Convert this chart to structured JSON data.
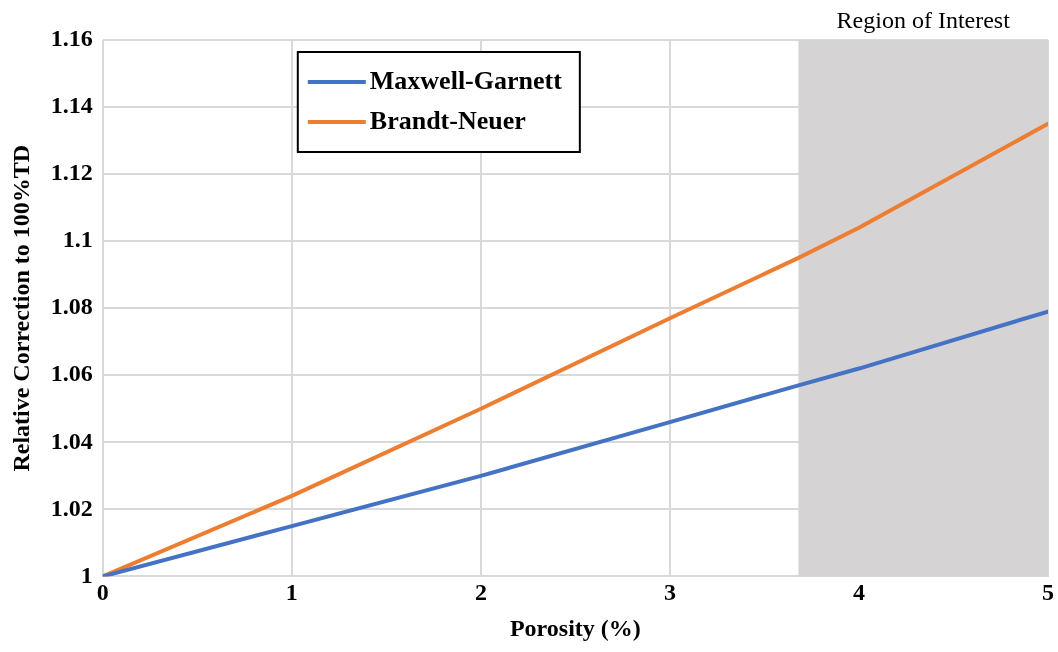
{
  "chart_data": {
    "type": "line",
    "xlabel": "Porosity (%)",
    "ylabel": "Relative Correction to 100%TD",
    "x": [
      0,
      1,
      2,
      3,
      3.68,
      4,
      5
    ],
    "series": [
      {
        "name": "Maxwell-Garnett",
        "color": "#4472c4",
        "values": [
          1,
          1.015,
          1.03,
          1.046,
          1.057,
          1.062,
          1.079
        ]
      },
      {
        "name": "Brandt-Neuer",
        "color": "#ed7d31",
        "values": [
          1,
          1.024,
          1.05,
          1.077,
          1.095,
          1.104,
          1.135
        ]
      }
    ],
    "xlim": [
      0,
      5
    ],
    "xticks": [
      0,
      1,
      2,
      3,
      4,
      5
    ],
    "ylim": [
      1,
      1.16
    ],
    "yticks": [
      1,
      1.02,
      1.04,
      1.06,
      1.08,
      1.1,
      1.12,
      1.14,
      1.16
    ],
    "bands": [
      {
        "axis": "x",
        "from": 3.68,
        "to": 5,
        "label": "Region of Interest",
        "color": "#d5d3d4"
      }
    ],
    "grid": true,
    "legend": "top left",
    "marker": "none",
    "line_style": "solid"
  }
}
